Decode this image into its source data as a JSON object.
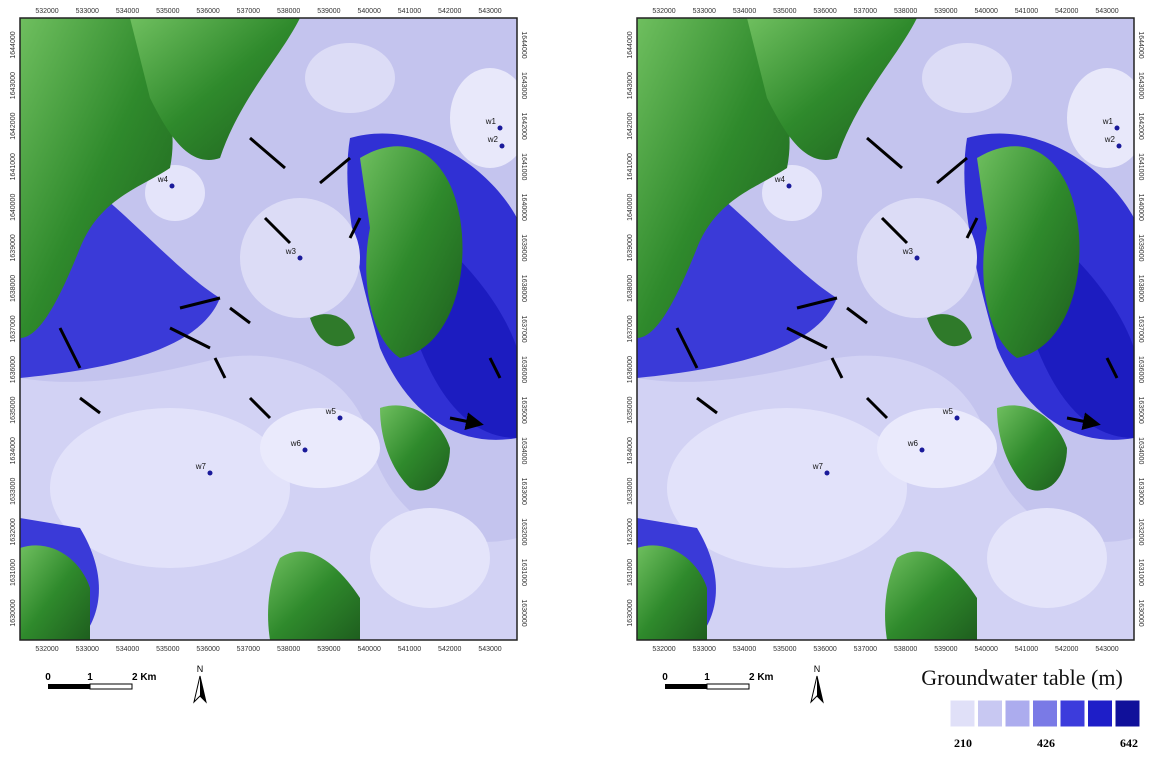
{
  "maps": [
    {
      "x_ticks": [
        "532000",
        "533000",
        "534000",
        "535000",
        "536000",
        "537000",
        "538000",
        "539000",
        "540000",
        "541000",
        "542000",
        "543000"
      ],
      "y_ticks": [
        "1644000",
        "1643000",
        "1642000",
        "1641000",
        "1640000",
        "1639000",
        "1638000",
        "1637000",
        "1636000",
        "1635000",
        "1634000",
        "1633000",
        "1632000",
        "1631000",
        "1630000"
      ],
      "wells": [
        "w1",
        "w2",
        "w3",
        "w4",
        "w5",
        "w6",
        "w7"
      ]
    },
    {
      "x_ticks": [
        "532000",
        "533000",
        "534000",
        "535000",
        "536000",
        "537000",
        "538000",
        "539000",
        "540000",
        "541000",
        "542000",
        "543000"
      ],
      "y_ticks": [
        "1644000",
        "1643000",
        "1642000",
        "1641000",
        "1640000",
        "1639000",
        "1638000",
        "1637000",
        "1636000",
        "1635000",
        "1634000",
        "1633000",
        "1632000",
        "1631000",
        "1630000"
      ],
      "wells": [
        "w1",
        "w2",
        "w3",
        "w4",
        "w5",
        "w6",
        "w7"
      ]
    }
  ],
  "scale_bar": {
    "labels": [
      "0",
      "1",
      "2 Km"
    ],
    "north": "N"
  },
  "legend": {
    "title": "Groundwater table (m)",
    "labels": [
      "210",
      "426",
      "642"
    ]
  }
}
